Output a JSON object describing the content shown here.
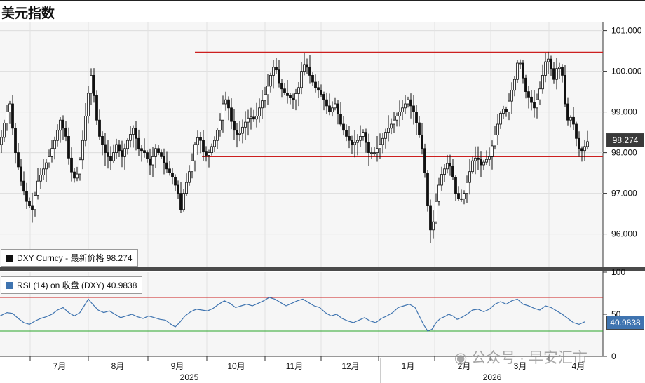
{
  "title": "美元指数",
  "colors": {
    "candle": "#111111",
    "rsi_line": "#3f74b0",
    "resistance": "#cc1f1f",
    "oversold": "#2aa52a",
    "panel_bg": "#f6f6f6"
  },
  "main_legend": {
    "swatch_color": "#111111",
    "text": "DXY Curncy - 最新价格 98.274"
  },
  "rsi_legend": {
    "swatch_color": "#3f74b0",
    "text": "RSI (14)  on 收盘 (DXY) 40.9838"
  },
  "price_tag": "98.274",
  "rsi_tag": "40.9838",
  "watermark": "公众号 · 早安汇市",
  "chart_data": [
    {
      "type": "candlestick",
      "series_name": "DXY Curncy",
      "last_price": 98.274,
      "ylim": [
        95.2,
        101.2
      ],
      "yticks": [
        "101.000",
        "100.000",
        "99.000",
        "98.000",
        "97.000",
        "96.000"
      ],
      "ytick_values": [
        101,
        100,
        99,
        98,
        97,
        96
      ],
      "x_months": [
        "7月",
        "8月",
        "9月",
        "10月",
        "11月",
        "12月",
        "1月",
        "2月",
        "3月",
        "4月"
      ],
      "x_years": [
        "2025",
        "2026"
      ],
      "horizontal_lines": [
        100.47,
        97.9
      ],
      "close_path": [
        [
          0,
          98.2
        ],
        [
          8,
          98.9
        ],
        [
          14,
          99.2
        ],
        [
          22,
          98.0
        ],
        [
          30,
          97.3
        ],
        [
          38,
          96.8
        ],
        [
          46,
          96.6
        ],
        [
          54,
          97.3
        ],
        [
          62,
          97.6
        ],
        [
          70,
          97.9
        ],
        [
          78,
          98.3
        ],
        [
          86,
          98.8
        ],
        [
          94,
          98.4
        ],
        [
          100,
          97.6
        ],
        [
          108,
          97.3
        ],
        [
          116,
          98.0
        ],
        [
          122,
          98.9
        ],
        [
          127,
          99.6
        ],
        [
          131,
          100.0
        ],
        [
          136,
          99.0
        ],
        [
          142,
          98.4
        ],
        [
          150,
          98.0
        ],
        [
          158,
          97.8
        ],
        [
          166,
          98.2
        ],
        [
          174,
          97.9
        ],
        [
          182,
          98.3
        ],
        [
          190,
          98.6
        ],
        [
          198,
          98.1
        ],
        [
          206,
          98.0
        ],
        [
          214,
          97.7
        ],
        [
          222,
          98.1
        ],
        [
          230,
          97.9
        ],
        [
          238,
          97.6
        ],
        [
          246,
          97.4
        ],
        [
          254,
          97.0
        ],
        [
          258,
          96.6
        ],
        [
          262,
          97.0
        ],
        [
          268,
          97.4
        ],
        [
          274,
          97.8
        ],
        [
          280,
          98.4
        ],
        [
          286,
          98.3
        ],
        [
          292,
          97.9
        ],
        [
          298,
          98.0
        ],
        [
          306,
          98.3
        ],
        [
          314,
          98.8
        ],
        [
          320,
          99.4
        ],
        [
          326,
          99.1
        ],
        [
          332,
          98.6
        ],
        [
          340,
          98.4
        ],
        [
          348,
          98.7
        ],
        [
          356,
          98.9
        ],
        [
          364,
          98.8
        ],
        [
          372,
          99.2
        ],
        [
          380,
          99.5
        ],
        [
          386,
          99.9
        ],
        [
          392,
          100.2
        ],
        [
          398,
          99.7
        ],
        [
          404,
          99.5
        ],
        [
          410,
          99.4
        ],
        [
          418,
          99.3
        ],
        [
          426,
          99.6
        ],
        [
          432,
          100.2
        ],
        [
          438,
          100.1
        ],
        [
          444,
          99.8
        ],
        [
          450,
          99.6
        ],
        [
          456,
          99.5
        ],
        [
          462,
          99.3
        ],
        [
          470,
          99.0
        ],
        [
          478,
          99.2
        ],
        [
          486,
          98.7
        ],
        [
          494,
          98.4
        ],
        [
          502,
          98.2
        ],
        [
          510,
          98.3
        ],
        [
          518,
          98.5
        ],
        [
          526,
          98.0
        ],
        [
          534,
          98.0
        ],
        [
          542,
          98.2
        ],
        [
          550,
          98.5
        ],
        [
          558,
          98.7
        ],
        [
          566,
          98.9
        ],
        [
          574,
          99.1
        ],
        [
          582,
          99.3
        ],
        [
          590,
          99.0
        ],
        [
          596,
          98.6
        ],
        [
          602,
          98.1
        ],
        [
          606,
          97.5
        ],
        [
          610,
          96.7
        ],
        [
          614,
          96.1
        ],
        [
          618,
          96.3
        ],
        [
          622,
          96.8
        ],
        [
          628,
          97.4
        ],
        [
          634,
          97.6
        ],
        [
          640,
          97.8
        ],
        [
          646,
          97.4
        ],
        [
          650,
          97.0
        ],
        [
          656,
          96.8
        ],
        [
          662,
          97.0
        ],
        [
          668,
          97.4
        ],
        [
          674,
          97.8
        ],
        [
          680,
          97.9
        ],
        [
          686,
          97.7
        ],
        [
          692,
          97.8
        ],
        [
          698,
          97.9
        ],
        [
          704,
          98.3
        ],
        [
          710,
          98.7
        ],
        [
          716,
          99.1
        ],
        [
          722,
          99.0
        ],
        [
          728,
          99.4
        ],
        [
          734,
          99.8
        ],
        [
          740,
          100.4
        ],
        [
          744,
          100.0
        ],
        [
          750,
          99.5
        ],
        [
          756,
          99.3
        ],
        [
          762,
          99.1
        ],
        [
          768,
          99.4
        ],
        [
          774,
          99.9
        ],
        [
          780,
          100.4
        ],
        [
          784,
          100.2
        ],
        [
          790,
          99.8
        ],
        [
          796,
          100.2
        ],
        [
          802,
          99.9
        ],
        [
          806,
          99.2
        ],
        [
          810,
          98.8
        ],
        [
          816,
          98.9
        ],
        [
          820,
          98.5
        ],
        [
          824,
          98.2
        ],
        [
          828,
          98.0
        ],
        [
          832,
          98.1
        ],
        [
          836,
          98.2
        ],
        [
          838,
          98.27
        ]
      ]
    },
    {
      "type": "line",
      "series_name": "RSI (14)",
      "last_value": 40.9838,
      "ylim": [
        0,
        100
      ],
      "yticks": [
        "100",
        "50",
        "0"
      ],
      "ytick_values": [
        100,
        50,
        0
      ],
      "overbought": 70,
      "oversold": 30,
      "path": [
        [
          0,
          48
        ],
        [
          10,
          52
        ],
        [
          18,
          51
        ],
        [
          26,
          45
        ],
        [
          34,
          40
        ],
        [
          42,
          38
        ],
        [
          50,
          42
        ],
        [
          58,
          45
        ],
        [
          66,
          47
        ],
        [
          74,
          50
        ],
        [
          82,
          55
        ],
        [
          90,
          58
        ],
        [
          98,
          52
        ],
        [
          106,
          48
        ],
        [
          114,
          52
        ],
        [
          120,
          60
        ],
        [
          126,
          68
        ],
        [
          132,
          62
        ],
        [
          140,
          55
        ],
        [
          148,
          52
        ],
        [
          156,
          54
        ],
        [
          164,
          50
        ],
        [
          172,
          46
        ],
        [
          180,
          48
        ],
        [
          188,
          50
        ],
        [
          196,
          47
        ],
        [
          204,
          45
        ],
        [
          212,
          48
        ],
        [
          220,
          46
        ],
        [
          228,
          44
        ],
        [
          236,
          43
        ],
        [
          244,
          38
        ],
        [
          250,
          35
        ],
        [
          256,
          40
        ],
        [
          264,
          48
        ],
        [
          272,
          53
        ],
        [
          280,
          56
        ],
        [
          288,
          55
        ],
        [
          296,
          54
        ],
        [
          304,
          57
        ],
        [
          312,
          62
        ],
        [
          320,
          66
        ],
        [
          328,
          63
        ],
        [
          336,
          58
        ],
        [
          344,
          60
        ],
        [
          352,
          62
        ],
        [
          360,
          60
        ],
        [
          368,
          63
        ],
        [
          376,
          66
        ],
        [
          384,
          70
        ],
        [
          392,
          68
        ],
        [
          400,
          64
        ],
        [
          408,
          60
        ],
        [
          416,
          63
        ],
        [
          424,
          66
        ],
        [
          432,
          68
        ],
        [
          440,
          64
        ],
        [
          448,
          60
        ],
        [
          456,
          58
        ],
        [
          464,
          52
        ],
        [
          472,
          48
        ],
        [
          480,
          50
        ],
        [
          488,
          45
        ],
        [
          496,
          42
        ],
        [
          504,
          40
        ],
        [
          512,
          43
        ],
        [
          520,
          46
        ],
        [
          528,
          42
        ],
        [
          536,
          40
        ],
        [
          544,
          45
        ],
        [
          552,
          48
        ],
        [
          560,
          52
        ],
        [
          568,
          58
        ],
        [
          576,
          60
        ],
        [
          584,
          62
        ],
        [
          592,
          58
        ],
        [
          598,
          48
        ],
        [
          604,
          38
        ],
        [
          610,
          30
        ],
        [
          616,
          32
        ],
        [
          622,
          40
        ],
        [
          628,
          45
        ],
        [
          634,
          47
        ],
        [
          640,
          50
        ],
        [
          646,
          48
        ],
        [
          652,
          44
        ],
        [
          658,
          46
        ],
        [
          666,
          50
        ],
        [
          674,
          55
        ],
        [
          682,
          56
        ],
        [
          690,
          53
        ],
        [
          698,
          56
        ],
        [
          706,
          62
        ],
        [
          714,
          65
        ],
        [
          722,
          62
        ],
        [
          730,
          66
        ],
        [
          738,
          68
        ],
        [
          746,
          62
        ],
        [
          754,
          60
        ],
        [
          762,
          57
        ],
        [
          770,
          55
        ],
        [
          778,
          60
        ],
        [
          786,
          58
        ],
        [
          794,
          54
        ],
        [
          802,
          50
        ],
        [
          810,
          45
        ],
        [
          818,
          40
        ],
        [
          826,
          38
        ],
        [
          834,
          41
        ]
      ]
    }
  ]
}
